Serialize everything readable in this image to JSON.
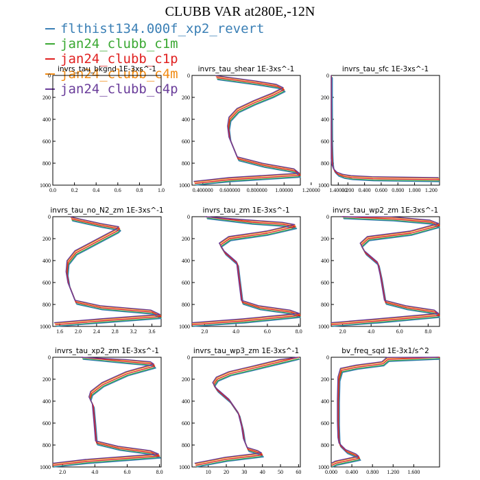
{
  "title": "CLUBB VAR at280E,-12N",
  "legend": [
    {
      "name": "flthist134.000f_xp2_revert",
      "color": "#3a7fb5"
    },
    {
      "name": "jan24_clubb_c1m",
      "color": "#3aa832"
    },
    {
      "name": "jan24_clubb_c1p",
      "color": "#e02020"
    },
    {
      "name": "jan24_clubb_c4m",
      "color": "#f08a12"
    },
    {
      "name": "jan24_clubb_c4p",
      "color": "#6a3d9a"
    }
  ],
  "chart_data": [
    {
      "type": "line",
      "title": "invrs_tau_bkgnd   1E-3xs^-1",
      "xlim": [
        0,
        1
      ],
      "ylim": [
        1000,
        0
      ],
      "xticks": [
        "0.0",
        "0.2",
        "0.4",
        "0.6",
        "0.8",
        "1.0"
      ],
      "yticks": [
        "0",
        "200",
        "400",
        "600",
        "800",
        "1000"
      ],
      "x": [],
      "y": []
    },
    {
      "type": "line",
      "title": "invrs_tau_shear   1E-3xs^-1",
      "xlim": [
        0.32,
        1.12
      ],
      "ylim": [
        1000,
        0
      ],
      "xticks": [
        "0.400000",
        "0.600000",
        "0.800000",
        "1.00000",
        "1.20000",
        "1.40000"
      ],
      "yticks": [
        "0",
        "200",
        "400",
        "600",
        "800",
        "1000"
      ],
      "x": [
        0.5,
        0.8,
        0.95,
        1.0,
        0.92,
        0.78,
        0.66,
        0.6,
        0.59,
        0.6,
        0.66,
        0.85,
        1.08,
        1.12,
        0.6,
        0.34
      ],
      "y": [
        20,
        70,
        100,
        130,
        180,
        250,
        320,
        400,
        480,
        580,
        760,
        820,
        870,
        910,
        950,
        985
      ]
    },
    {
      "type": "line",
      "title": "invrs_tau_sfc   1E-3xs^-1",
      "xlim": [
        0,
        1.3
      ],
      "ylim": [
        1000,
        0
      ],
      "xticks": [
        "0.200",
        "0.400",
        "0.600",
        "0.800",
        "1.000",
        "1.200"
      ],
      "yticks": [
        "0",
        "200",
        "400",
        "600",
        "800",
        "1000"
      ],
      "x": [
        0.002,
        0.002,
        0.003,
        0.005,
        0.008,
        0.012,
        0.02,
        0.04,
        0.08,
        0.15,
        0.25,
        0.5,
        1.3
      ],
      "y": [
        0,
        200,
        400,
        600,
        700,
        780,
        830,
        870,
        900,
        920,
        932,
        942,
        950
      ]
    },
    {
      "type": "line",
      "title": "invrs_tau_no_N2_zm   1E-3xs^-1",
      "xlim": [
        1.45,
        3.8
      ],
      "ylim": [
        1000,
        0
      ],
      "xticks": [
        "1.6",
        "2.0",
        "2.4",
        "2.8",
        "3.2",
        "3.6"
      ],
      "yticks": [
        "0",
        "200",
        "400",
        "600",
        "800",
        "1000"
      ],
      "x": [
        1.85,
        2.5,
        2.9,
        2.85,
        2.4,
        1.95,
        1.78,
        1.76,
        1.8,
        1.95,
        2.5,
        3.6,
        3.8,
        2.5,
        1.5
      ],
      "y": [
        20,
        80,
        110,
        130,
        230,
        330,
        420,
        520,
        620,
        780,
        830,
        870,
        910,
        950,
        985
      ]
    },
    {
      "type": "line",
      "title": "invrs_tau_zm   1E-3xs^-1",
      "xlim": [
        1.2,
        8.1
      ],
      "ylim": [
        1000,
        0
      ],
      "xticks": [
        "2.0",
        "4.0",
        "6.0",
        "8.0"
      ],
      "yticks": [
        "0",
        "200",
        "400",
        "600",
        "800",
        "1000"
      ],
      "x": [
        2.1,
        5.0,
        7.0,
        7.8,
        6.0,
        3.6,
        3.0,
        3.3,
        4.1,
        4.2,
        4.4,
        5.5,
        7.5,
        8.1,
        4.5,
        1.2
      ],
      "y": [
        0,
        50,
        70,
        90,
        150,
        200,
        260,
        330,
        430,
        550,
        780,
        830,
        870,
        900,
        950,
        985
      ]
    },
    {
      "type": "line",
      "title": "invrs_tau_wp2_zm   1E-3xs^-1",
      "xlim": [
        1.2,
        8.8
      ],
      "ylim": [
        1000,
        0
      ],
      "xticks": [
        "2.0",
        "4.0",
        "6.0",
        "8.0"
      ],
      "yticks": [
        "0",
        "200",
        "400",
        "600",
        "800",
        "1000"
      ],
      "x": [
        2.0,
        5.5,
        8.2,
        8.8,
        6.8,
        3.8,
        3.3,
        3.6,
        4.5,
        4.7,
        5.0,
        6.5,
        8.5,
        8.8,
        4.5,
        1.2
      ],
      "y": [
        0,
        20,
        50,
        80,
        150,
        200,
        260,
        330,
        430,
        550,
        780,
        830,
        870,
        900,
        950,
        985
      ]
    },
    {
      "type": "line",
      "title": "invrs_tau_xp2_zm   1E-3xs^-1",
      "xlim": [
        1.4,
        8.1
      ],
      "ylim": [
        1000,
        0
      ],
      "xticks": [
        "2.0",
        "4.0",
        "6.0",
        "8.0"
      ],
      "yticks": [
        "0",
        "200",
        "400",
        "600",
        "800",
        "1000"
      ],
      "x": [
        3.2,
        6.0,
        7.5,
        7.7,
        6.0,
        4.5,
        3.8,
        3.7,
        3.9,
        4.0,
        4.1,
        5.5,
        7.5,
        8.0,
        3.5,
        1.4
      ],
      "y": [
        0,
        40,
        60,
        80,
        150,
        250,
        330,
        380,
        440,
        600,
        780,
        830,
        870,
        900,
        950,
        985
      ]
    },
    {
      "type": "line",
      "title": "invrs_tau_wp3_zm   1E-3xs^-1",
      "xlim": [
        1,
        61
      ],
      "ylim": [
        1000,
        0
      ],
      "xticks": [
        "10",
        "20",
        "30",
        "40",
        "50",
        "60"
      ],
      "yticks": [
        "0",
        "200",
        "400",
        "600",
        "800",
        "1000"
      ],
      "x": [
        60,
        50,
        35,
        22,
        15,
        13,
        15,
        22,
        27,
        29,
        30,
        32,
        38,
        40,
        20,
        3
      ],
      "y": [
        0,
        40,
        100,
        150,
        200,
        250,
        300,
        400,
        520,
        650,
        760,
        840,
        870,
        890,
        930,
        985
      ]
    },
    {
      "type": "line",
      "title": "bv_freq_sqd   1E-3x1/s^2",
      "xlim": [
        0,
        2.1
      ],
      "ylim": [
        1000,
        0
      ],
      "xticks": [
        "0.000",
        "0.400",
        "0.800",
        "1.200",
        "1.600"
      ],
      "yticks": [
        "0",
        "200",
        "400",
        "600",
        "800",
        "1000"
      ],
      "x": [
        2.1,
        1.1,
        1.0,
        0.5,
        0.2,
        0.15,
        0.14,
        0.14,
        0.15,
        0.17,
        0.3,
        0.5,
        0.55,
        0.3,
        0.1,
        0.01
      ],
      "y": [
        0,
        20,
        60,
        90,
        120,
        200,
        400,
        600,
        750,
        800,
        860,
        900,
        920,
        945,
        965,
        985
      ]
    }
  ]
}
